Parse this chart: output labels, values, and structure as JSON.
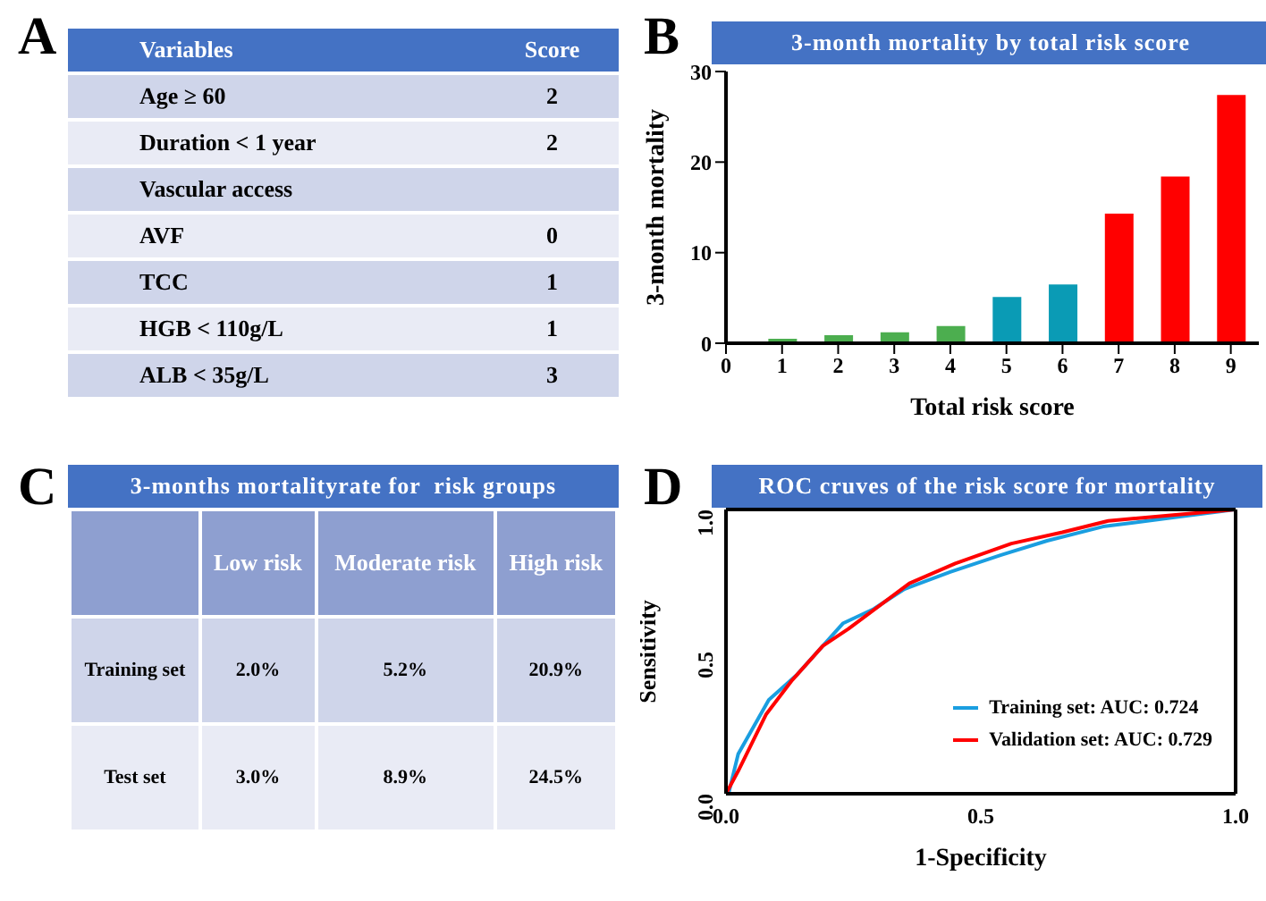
{
  "chart_data": [
    {
      "type": "other",
      "annotations": [
        "A"
      ],
      "xlabel": "Variables",
      "ylabel": "Score",
      "categories": [
        "Age ≥ 60",
        "Duration < 1 year",
        "Vascular access",
        "AVF",
        "TCC",
        "HGB < 110g/L",
        "ALB < 35g/L"
      ],
      "values": [
        2,
        2,
        null,
        0,
        1,
        1,
        3
      ],
      "data_labels": true
    },
    {
      "type": "bar",
      "title": "3-month mortality by total risk score",
      "annotations": [
        "B"
      ],
      "xlabel": "Total risk score",
      "ylabel": "3-month mortality",
      "x": [
        1,
        2,
        3,
        4,
        5,
        6,
        7,
        8,
        9
      ],
      "values": [
        0.5,
        0.9,
        1.2,
        1.9,
        5.1,
        6.5,
        14.3,
        18.4,
        27.4
      ],
      "colors": [
        "#4cae4f",
        "#4cae4f",
        "#4cae4f",
        "#4cae4f",
        "#0a9bb5",
        "#0a9bb5",
        "#ff0000",
        "#ff0000",
        "#ff0000"
      ],
      "xlim": [
        0,
        9.5
      ],
      "xticks": [
        0,
        1,
        2,
        3,
        4,
        5,
        6,
        7,
        8,
        9
      ],
      "ylim": [
        0,
        30
      ],
      "yticks": [
        0,
        10,
        20,
        30
      ]
    },
    {
      "type": "other",
      "title": "3-months mortalityrate for  risk groups",
      "annotations": [
        "C"
      ],
      "categories": [
        "Low risk",
        "Moderate risk",
        "High risk"
      ],
      "series": [
        {
          "name": "Training set",
          "values": [
            2.0,
            5.2,
            20.9
          ],
          "value_labels": [
            "2.0%",
            "5.2%",
            "20.9%"
          ]
        },
        {
          "name": "Test set",
          "values": [
            3.0,
            8.9,
            24.5
          ],
          "value_labels": [
            "3.0%",
            "8.9%",
            "24.5%"
          ]
        }
      ]
    },
    {
      "type": "line",
      "title": "ROC cruves of the risk score for mortality",
      "annotations": [
        "D"
      ],
      "xlabel": "1-Specificity",
      "ylabel": "Sensitivity",
      "xlim": [
        0,
        1
      ],
      "xticks": [
        {
          "value": 0,
          "label": "0.0"
        },
        0.5,
        {
          "value": 1,
          "label": "1.0"
        }
      ],
      "ylim": [
        0,
        1
      ],
      "yticks": [
        {
          "value": 0,
          "label": "0.0"
        },
        0.5,
        {
          "value": 1,
          "label": "1.0"
        }
      ],
      "legend": "bottom right",
      "marker": "none",
      "series": [
        {
          "name": "Training set: AUC: 0.724",
          "color": "#1a9ee0",
          "x": [
            0.005,
            0.024,
            0.084,
            0.14,
            0.19,
            0.23,
            0.29,
            0.35,
            0.44,
            0.54,
            0.63,
            0.74,
            0.87,
            1
          ],
          "values": [
            0,
            0.14,
            0.33,
            0.42,
            0.52,
            0.6,
            0.65,
            0.72,
            0.78,
            0.84,
            0.89,
            0.94,
            0.97,
            1
          ]
        },
        {
          "name": "Validation set: AUC: 0.729",
          "color": "#ff0000",
          "x": [
            0,
            0.024,
            0.079,
            0.13,
            0.19,
            0.24,
            0.3,
            0.36,
            0.45,
            0.56,
            0.66,
            0.75,
            1
          ],
          "values": [
            0,
            0.08,
            0.28,
            0.4,
            0.52,
            0.58,
            0.66,
            0.74,
            0.81,
            0.88,
            0.92,
            0.96,
            1
          ]
        }
      ]
    }
  ]
}
